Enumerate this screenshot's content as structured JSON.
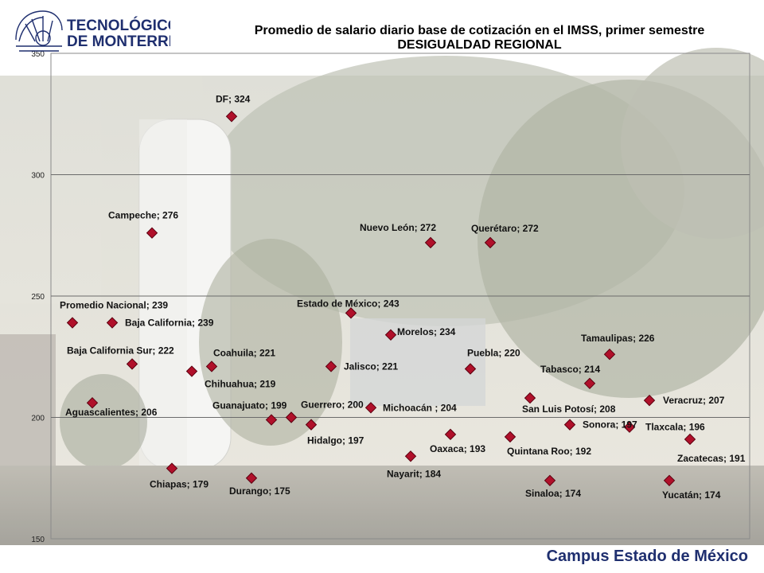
{
  "header": {
    "logo_line1": "TECNOLÓGICO",
    "logo_line2": "DE MONTERREY",
    "title": "Promedio de salario diario base de cotización en el IMSS, primer semestre",
    "subtitle": "DESIGUALDAD REGIONAL"
  },
  "footer": {
    "campus": "Campus Estado de México"
  },
  "colors": {
    "marker": "#b0102a",
    "marker_stroke": "#5a0010",
    "footer_text": "#1f2f6f",
    "grid": "#6b6b6b"
  },
  "chart_data": {
    "type": "scatter",
    "title": "Promedio de salario diario base de cotización en el IMSS, primer semestre",
    "subtitle": "DESIGUALDAD REGIONAL",
    "ylim": [
      150,
      350
    ],
    "yticks": [
      "150",
      "200",
      "250",
      "300",
      "350"
    ],
    "grid": true,
    "points": [
      {
        "label": "Promedio Nacional; 239",
        "y": 239
      },
      {
        "label": "Baja California; 239",
        "y": 239
      },
      {
        "label": "Aguascalientes;  206",
        "y": 206
      },
      {
        "label": "Baja California Sur; 222",
        "y": 222
      },
      {
        "label": "Campeche; 276",
        "y": 276
      },
      {
        "label": "Chiapas; 179",
        "y": 179
      },
      {
        "label": "Chihuahua; 219",
        "y": 219
      },
      {
        "label": "Coahuila; 221",
        "y": 221
      },
      {
        "label": "DF; 324",
        "y": 324
      },
      {
        "label": "Durango;  175",
        "y": 175
      },
      {
        "label": "Guanajuato; 199",
        "y": 199
      },
      {
        "label": "Guerrero; 200",
        "y": 200
      },
      {
        "label": "Hidalgo; 197",
        "y": 197
      },
      {
        "label": "Jalisco; 221",
        "y": 221
      },
      {
        "label": "Estado de México; 243",
        "y": 243
      },
      {
        "label": "Michoacán  ; 204",
        "y": 204
      },
      {
        "label": "Morelos; 234",
        "y": 234
      },
      {
        "label": "Nayarit; 184",
        "y": 184
      },
      {
        "label": "Nuevo León; 272",
        "y": 272
      },
      {
        "label": "Oaxaca;  193",
        "y": 193
      },
      {
        "label": "Puebla; 220",
        "y": 220
      },
      {
        "label": "Querétaro;  272",
        "y": 272
      },
      {
        "label": "Quintana Roo; 192",
        "y": 192
      },
      {
        "label": "San Luis Potosí; 208",
        "y": 208
      },
      {
        "label": "Sinaloa; 174",
        "y": 174
      },
      {
        "label": "Sonora; 197",
        "y": 197
      },
      {
        "label": "Tabasco;  214",
        "y": 214
      },
      {
        "label": "Tamaulipas; 226",
        "y": 226
      },
      {
        "label": "Tlaxcala; 196",
        "y": 196
      },
      {
        "label": "Veracruz; 207",
        "y": 207
      },
      {
        "label": "Yucatán; 174",
        "y": 174
      },
      {
        "label": "Zacatecas;  191",
        "y": 191
      }
    ]
  }
}
